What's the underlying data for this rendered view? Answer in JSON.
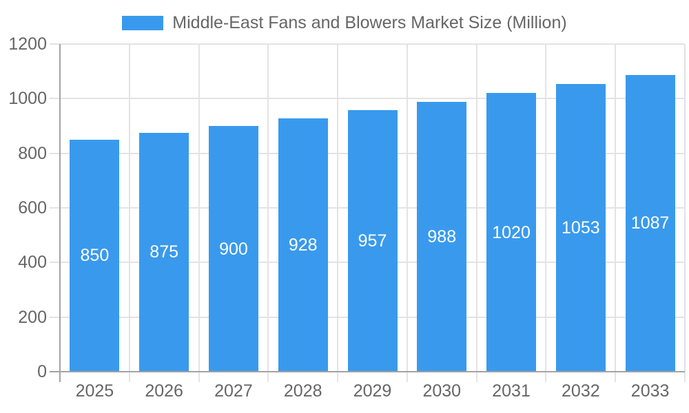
{
  "legend": {
    "label": "Middle-East Fans and Blowers Market Size (Million)"
  },
  "chart_data": {
    "type": "bar",
    "title": "Middle-East Fans and Blowers Market Size (Million)",
    "categories": [
      "2025",
      "2026",
      "2027",
      "2028",
      "2029",
      "2030",
      "2031",
      "2032",
      "2033"
    ],
    "values": [
      850,
      875,
      900,
      928,
      957,
      988,
      1020,
      1053,
      1087
    ],
    "xlabel": "",
    "ylabel": "",
    "ylim": [
      0,
      1200
    ],
    "yticks": [
      0,
      200,
      400,
      600,
      800,
      1000,
      1200
    ],
    "grid": true,
    "legend_position": "top-center",
    "value_labels": "inside-center",
    "colors": {
      "bar": "#399AED",
      "value_label": "#FFFFFF",
      "axis_text": "#666666",
      "grid_line": "#E3E3E3",
      "axis_line": "#A3A3A3",
      "background": "#FFFFFF"
    }
  }
}
